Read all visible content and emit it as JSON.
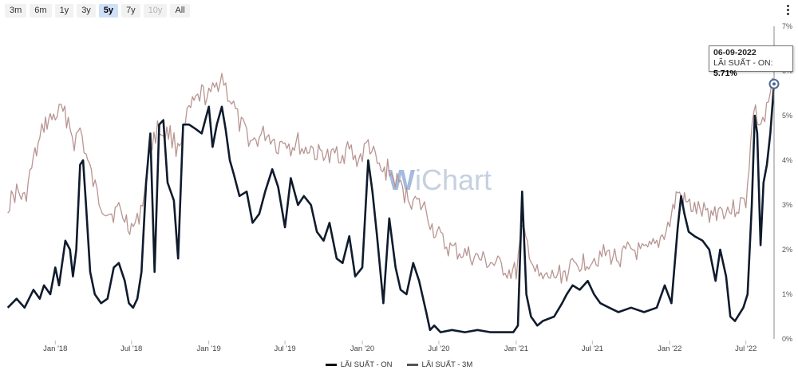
{
  "range_buttons": [
    {
      "label": "3m",
      "state": "normal"
    },
    {
      "label": "6m",
      "state": "normal"
    },
    {
      "label": "1y",
      "state": "normal"
    },
    {
      "label": "3y",
      "state": "normal"
    },
    {
      "label": "5y",
      "state": "active"
    },
    {
      "label": "7y",
      "state": "normal"
    },
    {
      "label": "10y",
      "state": "disabled"
    },
    {
      "label": "All",
      "state": "normal"
    }
  ],
  "watermark": {
    "prefix": "W",
    "rest": "iChart"
  },
  "tooltip": {
    "date": "06-09-2022",
    "series_label": "LÃI SUẤT - ON: ",
    "value": "5.71%"
  },
  "colors": {
    "on": "#0f1b2d",
    "m3": "#b89592",
    "active_button": "#cfe0f7",
    "crosshair": "#888888"
  },
  "chart_data": {
    "type": "line",
    "y_unit": "%",
    "ylim": [
      0,
      7
    ],
    "y_ticks": [
      "0%",
      "1%",
      "2%",
      "3%",
      "4%",
      "5%",
      "6%",
      "7%"
    ],
    "x_ticks": [
      "Jan '18",
      "Jul '18",
      "Jan '19",
      "Jul '19",
      "Jan '20",
      "Jul '20",
      "Jan '21",
      "Jul '21",
      "Jan '22",
      "Jul '22"
    ],
    "x_range": [
      "2017-09",
      "2022-09"
    ],
    "legend_position": "bottom-center",
    "series": [
      {
        "name": "LÃI SUẤT - ON",
        "color": "#0f1b2d",
        "points": [
          [
            "2017-09-10",
            0.7
          ],
          [
            "2017-10-01",
            0.9
          ],
          [
            "2017-10-20",
            0.7
          ],
          [
            "2017-11-10",
            1.1
          ],
          [
            "2017-11-25",
            0.9
          ],
          [
            "2017-12-05",
            1.2
          ],
          [
            "2017-12-20",
            1.0
          ],
          [
            "2018-01-01",
            1.6
          ],
          [
            "2018-01-10",
            1.2
          ],
          [
            "2018-01-25",
            2.2
          ],
          [
            "2018-02-05",
            2.0
          ],
          [
            "2018-02-12",
            1.4
          ],
          [
            "2018-02-20",
            2.0
          ],
          [
            "2018-03-01",
            3.9
          ],
          [
            "2018-03-08",
            4.0
          ],
          [
            "2018-03-15",
            3.0
          ],
          [
            "2018-03-25",
            1.5
          ],
          [
            "2018-04-05",
            1.0
          ],
          [
            "2018-04-20",
            0.8
          ],
          [
            "2018-05-05",
            0.9
          ],
          [
            "2018-05-20",
            1.6
          ],
          [
            "2018-06-01",
            1.7
          ],
          [
            "2018-06-15",
            1.3
          ],
          [
            "2018-06-25",
            0.8
          ],
          [
            "2018-07-05",
            0.7
          ],
          [
            "2018-07-15",
            0.9
          ],
          [
            "2018-07-25",
            1.5
          ],
          [
            "2018-08-05",
            3.5
          ],
          [
            "2018-08-15",
            4.6
          ],
          [
            "2018-08-25",
            1.5
          ],
          [
            "2018-09-05",
            4.8
          ],
          [
            "2018-09-15",
            4.9
          ],
          [
            "2018-09-25",
            3.5
          ],
          [
            "2018-10-10",
            3.1
          ],
          [
            "2018-10-20",
            1.8
          ],
          [
            "2018-11-01",
            4.8
          ],
          [
            "2018-11-15",
            4.8
          ],
          [
            "2018-12-01",
            4.7
          ],
          [
            "2018-12-15",
            4.6
          ],
          [
            "2019-01-01",
            5.2
          ],
          [
            "2019-01-10",
            4.3
          ],
          [
            "2019-01-20",
            4.8
          ],
          [
            "2019-02-01",
            5.2
          ],
          [
            "2019-02-10",
            4.7
          ],
          [
            "2019-02-20",
            4.0
          ],
          [
            "2019-03-01",
            3.7
          ],
          [
            "2019-03-15",
            3.2
          ],
          [
            "2019-04-01",
            3.3
          ],
          [
            "2019-04-15",
            2.6
          ],
          [
            "2019-05-01",
            2.8
          ],
          [
            "2019-05-15",
            3.3
          ],
          [
            "2019-06-01",
            3.8
          ],
          [
            "2019-06-15",
            3.4
          ],
          [
            "2019-07-01",
            2.5
          ],
          [
            "2019-07-15",
            3.6
          ],
          [
            "2019-08-01",
            3.0
          ],
          [
            "2019-08-15",
            3.2
          ],
          [
            "2019-09-01",
            3.0
          ],
          [
            "2019-09-15",
            2.4
          ],
          [
            "2019-10-01",
            2.2
          ],
          [
            "2019-10-15",
            2.6
          ],
          [
            "2019-11-01",
            1.8
          ],
          [
            "2019-11-15",
            1.7
          ],
          [
            "2019-12-01",
            2.3
          ],
          [
            "2019-12-15",
            1.4
          ],
          [
            "2020-01-01",
            1.6
          ],
          [
            "2020-01-15",
            4.0
          ],
          [
            "2020-01-25",
            3.3
          ],
          [
            "2020-02-05",
            2.3
          ],
          [
            "2020-02-20",
            0.8
          ],
          [
            "2020-03-05",
            2.7
          ],
          [
            "2020-03-20",
            1.6
          ],
          [
            "2020-04-01",
            1.1
          ],
          [
            "2020-04-15",
            1.0
          ],
          [
            "2020-05-01",
            1.7
          ],
          [
            "2020-05-15",
            1.3
          ],
          [
            "2020-06-01",
            0.6
          ],
          [
            "2020-06-10",
            0.2
          ],
          [
            "2020-06-20",
            0.3
          ],
          [
            "2020-07-05",
            0.15
          ],
          [
            "2020-08-01",
            0.2
          ],
          [
            "2020-09-01",
            0.15
          ],
          [
            "2020-10-01",
            0.2
          ],
          [
            "2020-11-01",
            0.15
          ],
          [
            "2020-12-01",
            0.15
          ],
          [
            "2020-12-25",
            0.15
          ],
          [
            "2021-01-05",
            0.3
          ],
          [
            "2021-01-15",
            3.3
          ],
          [
            "2021-01-25",
            1.0
          ],
          [
            "2021-02-05",
            0.5
          ],
          [
            "2021-02-20",
            0.3
          ],
          [
            "2021-03-05",
            0.4
          ],
          [
            "2021-04-01",
            0.5
          ],
          [
            "2021-04-20",
            0.8
          ],
          [
            "2021-05-01",
            1.0
          ],
          [
            "2021-05-15",
            1.2
          ],
          [
            "2021-06-01",
            1.1
          ],
          [
            "2021-06-20",
            1.3
          ],
          [
            "2021-07-05",
            1.0
          ],
          [
            "2021-07-20",
            0.8
          ],
          [
            "2021-08-10",
            0.7
          ],
          [
            "2021-09-01",
            0.6
          ],
          [
            "2021-10-01",
            0.7
          ],
          [
            "2021-11-01",
            0.6
          ],
          [
            "2021-12-01",
            0.7
          ],
          [
            "2021-12-20",
            1.2
          ],
          [
            "2022-01-05",
            0.8
          ],
          [
            "2022-01-20",
            2.5
          ],
          [
            "2022-01-28",
            3.2
          ],
          [
            "2022-02-05",
            2.8
          ],
          [
            "2022-02-15",
            2.4
          ],
          [
            "2022-03-01",
            2.3
          ],
          [
            "2022-03-20",
            2.2
          ],
          [
            "2022-04-05",
            2.0
          ],
          [
            "2022-04-20",
            1.3
          ],
          [
            "2022-05-01",
            2.0
          ],
          [
            "2022-05-15",
            1.4
          ],
          [
            "2022-05-25",
            0.5
          ],
          [
            "2022-06-05",
            0.4
          ],
          [
            "2022-06-25",
            0.7
          ],
          [
            "2022-07-05",
            1.0
          ],
          [
            "2022-07-15",
            3.0
          ],
          [
            "2022-07-22",
            5.0
          ],
          [
            "2022-07-28",
            4.6
          ],
          [
            "2022-08-05",
            2.1
          ],
          [
            "2022-08-12",
            3.5
          ],
          [
            "2022-08-20",
            3.9
          ],
          [
            "2022-08-28",
            4.6
          ],
          [
            "2022-09-06",
            5.71
          ]
        ]
      },
      {
        "name": "LÃI SUẤT - 3M",
        "color": "#b89592",
        "points": [
          [
            "2017-09-10",
            3.0
          ],
          [
            "2017-10-01",
            3.3
          ],
          [
            "2017-10-20",
            3.1
          ],
          [
            "2017-11-10",
            4.0
          ],
          [
            "2017-11-25",
            4.4
          ],
          [
            "2017-12-05",
            4.8
          ],
          [
            "2017-12-20",
            4.9
          ],
          [
            "2018-01-01",
            5.0
          ],
          [
            "2018-01-15",
            5.1
          ],
          [
            "2018-02-01",
            4.9
          ],
          [
            "2018-02-15",
            4.4
          ],
          [
            "2018-03-01",
            4.7
          ],
          [
            "2018-03-15",
            4.1
          ],
          [
            "2018-04-01",
            3.5
          ],
          [
            "2018-04-15",
            3.1
          ],
          [
            "2018-05-01",
            2.9
          ],
          [
            "2018-05-15",
            2.8
          ],
          [
            "2018-06-01",
            2.9
          ],
          [
            "2018-06-15",
            2.7
          ],
          [
            "2018-07-01",
            2.5
          ],
          [
            "2018-07-15",
            2.6
          ],
          [
            "2018-08-01",
            3.3
          ],
          [
            "2018-08-15",
            4.3
          ],
          [
            "2018-09-01",
            4.7
          ],
          [
            "2018-09-15",
            4.6
          ],
          [
            "2018-10-01",
            4.6
          ],
          [
            "2018-10-15",
            4.3
          ],
          [
            "2018-11-01",
            4.6
          ],
          [
            "2018-11-15",
            5.1
          ],
          [
            "2018-12-01",
            5.3
          ],
          [
            "2018-12-15",
            5.5
          ],
          [
            "2019-01-01",
            5.4
          ],
          [
            "2019-01-15",
            5.6
          ],
          [
            "2019-02-01",
            5.9
          ],
          [
            "2019-02-15",
            5.5
          ],
          [
            "2019-03-01",
            5.2
          ],
          [
            "2019-03-15",
            4.8
          ],
          [
            "2019-04-01",
            4.6
          ],
          [
            "2019-04-15",
            4.4
          ],
          [
            "2019-05-01",
            4.5
          ],
          [
            "2019-05-15",
            4.6
          ],
          [
            "2019-06-01",
            4.5
          ],
          [
            "2019-06-15",
            4.3
          ],
          [
            "2019-07-01",
            4.5
          ],
          [
            "2019-07-15",
            4.3
          ],
          [
            "2019-08-01",
            4.4
          ],
          [
            "2019-08-15",
            4.2
          ],
          [
            "2019-09-01",
            4.3
          ],
          [
            "2019-09-15",
            4.1
          ],
          [
            "2019-10-01",
            4.2
          ],
          [
            "2019-10-15",
            4.0
          ],
          [
            "2019-11-01",
            4.2
          ],
          [
            "2019-11-15",
            4.1
          ],
          [
            "2019-12-01",
            4.3
          ],
          [
            "2019-12-15",
            4.0
          ],
          [
            "2020-01-01",
            4.1
          ],
          [
            "2020-01-15",
            4.4
          ],
          [
            "2020-02-01",
            4.0
          ],
          [
            "2020-02-15",
            3.7
          ],
          [
            "2020-03-01",
            3.8
          ],
          [
            "2020-03-15",
            3.6
          ],
          [
            "2020-04-01",
            3.4
          ],
          [
            "2020-04-15",
            3.2
          ],
          [
            "2020-05-01",
            3.1
          ],
          [
            "2020-05-15",
            3.0
          ],
          [
            "2020-06-01",
            2.9
          ],
          [
            "2020-06-15",
            2.5
          ],
          [
            "2020-07-01",
            2.3
          ],
          [
            "2020-07-15",
            2.1
          ],
          [
            "2020-08-01",
            2.0
          ],
          [
            "2020-09-01",
            1.9
          ],
          [
            "2020-10-01",
            1.8
          ],
          [
            "2020-11-01",
            1.7
          ],
          [
            "2020-12-01",
            1.6
          ],
          [
            "2020-12-15",
            1.5
          ],
          [
            "2021-01-01",
            1.5
          ],
          [
            "2021-01-15",
            2.4
          ],
          [
            "2021-02-01",
            2.0
          ],
          [
            "2021-02-15",
            1.5
          ],
          [
            "2021-03-01",
            1.3
          ],
          [
            "2021-04-01",
            1.4
          ],
          [
            "2021-05-01",
            1.5
          ],
          [
            "2021-06-01",
            1.7
          ],
          [
            "2021-07-01",
            1.8
          ],
          [
            "2021-08-01",
            1.9
          ],
          [
            "2021-09-01",
            1.8
          ],
          [
            "2021-10-01",
            2.0
          ],
          [
            "2021-11-01",
            1.9
          ],
          [
            "2021-12-01",
            2.1
          ],
          [
            "2022-01-01",
            2.6
          ],
          [
            "2022-01-20",
            3.3
          ],
          [
            "2022-02-01",
            3.1
          ],
          [
            "2022-03-01",
            2.9
          ],
          [
            "2022-04-01",
            2.8
          ],
          [
            "2022-05-01",
            2.9
          ],
          [
            "2022-06-01",
            2.9
          ],
          [
            "2022-07-01",
            3.1
          ],
          [
            "2022-07-20",
            5.2
          ],
          [
            "2022-08-01",
            4.8
          ],
          [
            "2022-08-15",
            4.9
          ],
          [
            "2022-09-06",
            5.8
          ]
        ]
      }
    ]
  }
}
